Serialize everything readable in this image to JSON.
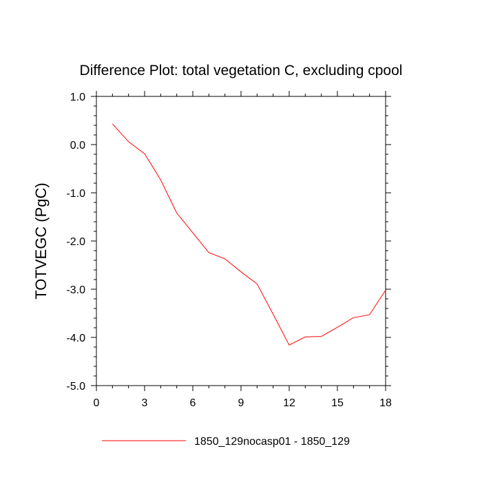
{
  "chart_data": {
    "type": "line",
    "title": "Difference Plot: total vegetation C, excluding cpool",
    "xlabel": "",
    "ylabel": "TOTVEGC  (PgC)",
    "xlim": [
      0,
      18
    ],
    "ylim": [
      -5.0,
      1.0
    ],
    "x_ticks": [
      0,
      3,
      6,
      9,
      12,
      15,
      18
    ],
    "x_tick_labels": [
      "0",
      "3",
      "6",
      "9",
      "12",
      "15",
      "18"
    ],
    "y_ticks": [
      1.0,
      0.0,
      -1.0,
      -2.0,
      -3.0,
      -4.0,
      -5.0
    ],
    "y_tick_labels": [
      "1.0",
      "0.0",
      "-1.0",
      "-2.0",
      "-3.0",
      "-4.0",
      "-5.0"
    ],
    "grid": false,
    "legend_position": "bottom",
    "series": [
      {
        "name": "1850_129nocasp01 - 1850_129",
        "color": "#ff0000",
        "x": [
          1,
          2,
          3,
          4,
          5,
          6,
          7,
          8,
          9,
          10,
          11,
          12,
          13,
          14,
          15,
          16,
          17,
          18
        ],
        "y": [
          0.43,
          0.06,
          -0.19,
          -0.73,
          -1.42,
          -1.83,
          -2.24,
          -2.37,
          -2.64,
          -2.89,
          -3.52,
          -4.16,
          -3.99,
          -3.98,
          -3.79,
          -3.59,
          -3.53,
          -3.02
        ]
      }
    ]
  }
}
